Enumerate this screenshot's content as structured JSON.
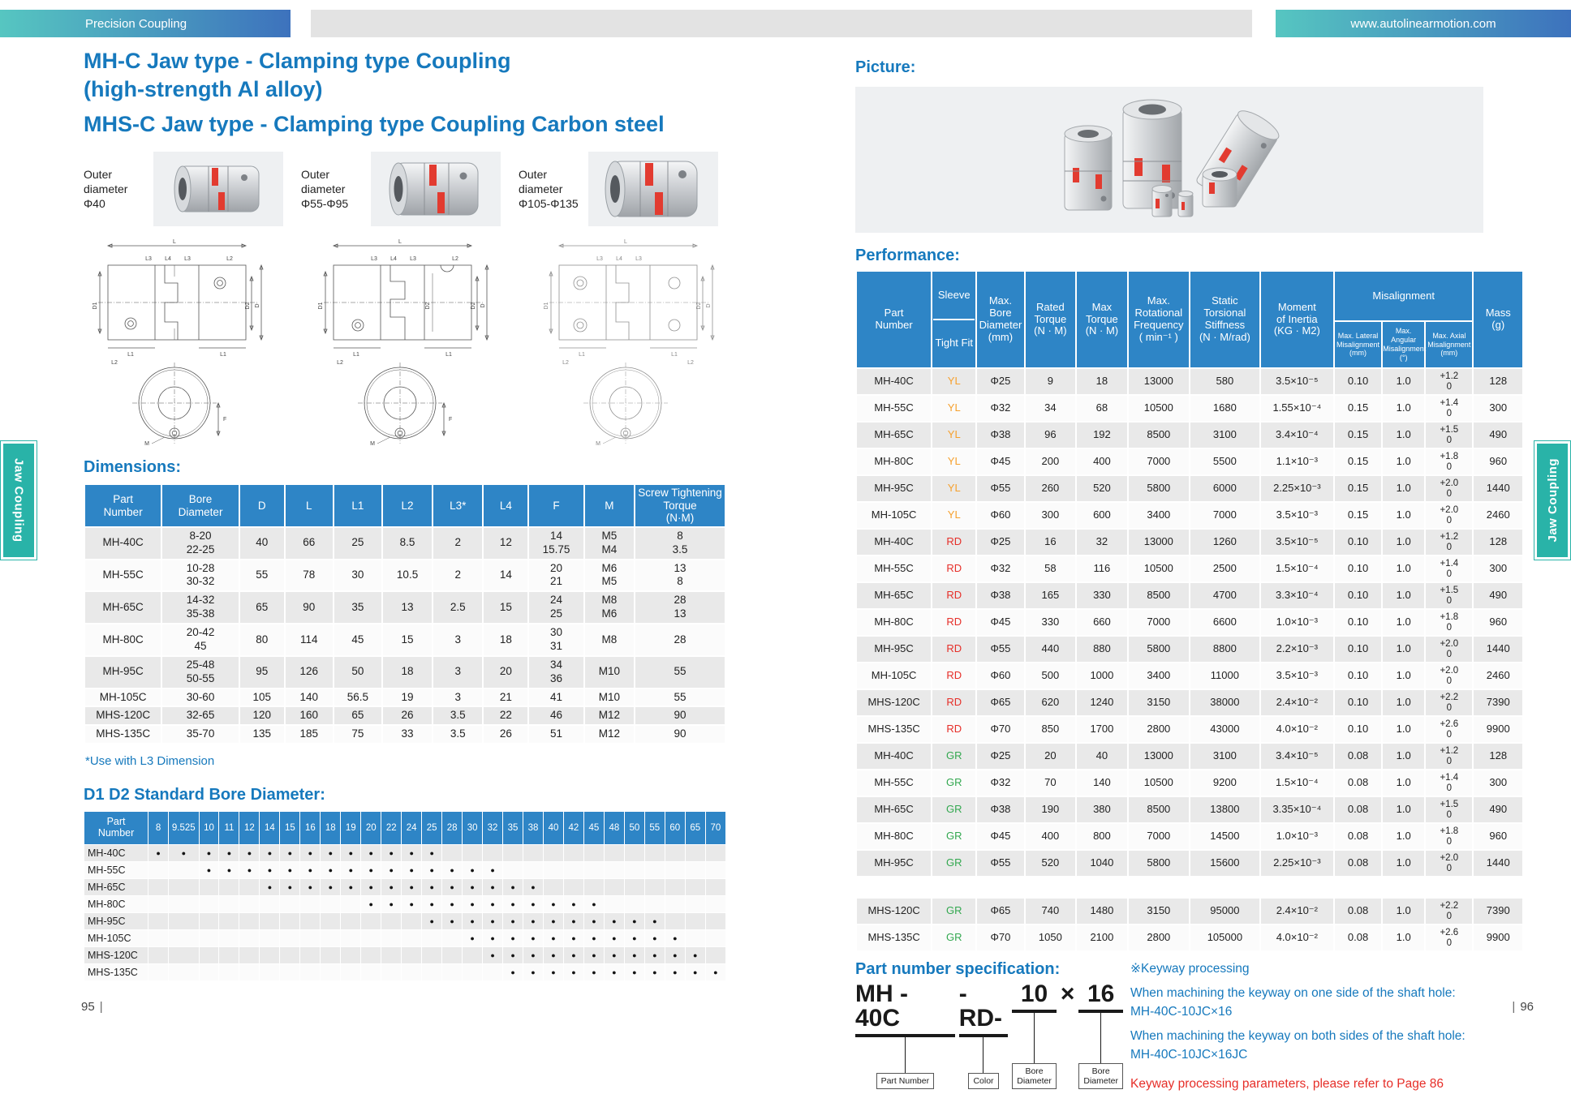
{
  "header": {
    "product_tag": "Precision Coupling",
    "website": "www.autolinearmotion.com"
  },
  "side_tab": {
    "label": "Jaw Coupling"
  },
  "drawings": {
    "L": "L",
    "L1": "L1",
    "L2": "L2",
    "L3": "L3",
    "L4": "L4",
    "D": "D",
    "D1": "D1",
    "D2": "D2",
    "M": "M",
    "F": "F"
  },
  "page_left": {
    "page_number": "95",
    "title_line1": "MH-C Jaw type - Clamping type Coupling",
    "title_line2": "(high-strength Al alloy)",
    "title_line3": "MHS-C Jaw type - Clamping type Coupling Carbon steel",
    "products": [
      {
        "caption": "Outer diameter",
        "value": "Φ40"
      },
      {
        "caption": "Outer diameter",
        "value": "Φ55-Φ95"
      },
      {
        "caption": "Outer diameter",
        "value": "Φ105-Φ135"
      }
    ],
    "dimensions": {
      "heading": "Dimensions:",
      "note": "*Use with L3 Dimension",
      "columns": [
        "Part\nNumber",
        "Bore\nDiameter",
        "D",
        "L",
        "L1",
        "L2",
        "L3*",
        "L4",
        "F",
        "M",
        "Screw Tightening\nTorque\n(N·M)"
      ],
      "rows": [
        [
          "MH-40C",
          "8-20\n22-25",
          "40",
          "66",
          "25",
          "8.5",
          "2",
          "12",
          "14\n15.75",
          "M5\nM4",
          "8\n3.5"
        ],
        [
          "MH-55C",
          "10-28\n30-32",
          "55",
          "78",
          "30",
          "10.5",
          "2",
          "14",
          "20\n21",
          "M6\nM5",
          "13\n8"
        ],
        [
          "MH-65C",
          "14-32\n35-38",
          "65",
          "90",
          "35",
          "13",
          "2.5",
          "15",
          "24\n25",
          "M8\nM6",
          "28\n13"
        ],
        [
          "MH-80C",
          "20-42\n45",
          "80",
          "114",
          "45",
          "15",
          "3",
          "18",
          "30\n31",
          "M8",
          "28"
        ],
        [
          "MH-95C",
          "25-48\n50-55",
          "95",
          "126",
          "50",
          "18",
          "3",
          "20",
          "34\n36",
          "M10",
          "55"
        ],
        [
          "MH-105C",
          "30-60",
          "105",
          "140",
          "56.5",
          "19",
          "3",
          "21",
          "41",
          "M10",
          "55"
        ],
        [
          "MHS-120C",
          "32-65",
          "120",
          "160",
          "65",
          "26",
          "3.5",
          "22",
          "46",
          "M12",
          "90"
        ],
        [
          "MHS-135C",
          "35-70",
          "135",
          "185",
          "75",
          "33",
          "3.5",
          "26",
          "51",
          "M12",
          "90"
        ]
      ]
    },
    "bore": {
      "heading": "D1 D2 Standard Bore Diameter:",
      "part_col": "Part\nNumber",
      "sizes": [
        "8",
        "9.525",
        "10",
        "11",
        "12",
        "14",
        "15",
        "16",
        "18",
        "19",
        "20",
        "22",
        "24",
        "25",
        "28",
        "30",
        "32",
        "35",
        "38",
        "40",
        "42",
        "45",
        "48",
        "50",
        "55",
        "60",
        "65",
        "70"
      ],
      "rows": [
        {
          "part": "MH-40C",
          "dots": [
            "8",
            "9.525",
            "10",
            "11",
            "12",
            "14",
            "15",
            "16",
            "18",
            "19",
            "20",
            "22",
            "24",
            "25"
          ]
        },
        {
          "part": "MH-55C",
          "dots": [
            "10",
            "11",
            "12",
            "14",
            "15",
            "16",
            "18",
            "19",
            "20",
            "22",
            "24",
            "25",
            "28",
            "30",
            "32"
          ]
        },
        {
          "part": "MH-65C",
          "dots": [
            "14",
            "15",
            "16",
            "18",
            "19",
            "20",
            "22",
            "24",
            "25",
            "28",
            "30",
            "32",
            "35",
            "38"
          ]
        },
        {
          "part": "MH-80C",
          "dots": [
            "20",
            "22",
            "24",
            "25",
            "28",
            "30",
            "32",
            "35",
            "38",
            "40",
            "42",
            "45"
          ]
        },
        {
          "part": "MH-95C",
          "dots": [
            "25",
            "28",
            "30",
            "32",
            "35",
            "38",
            "40",
            "42",
            "45",
            "48",
            "50",
            "55"
          ]
        },
        {
          "part": "MH-105C",
          "dots": [
            "30",
            "32",
            "35",
            "38",
            "40",
            "42",
            "45",
            "48",
            "50",
            "55",
            "60"
          ]
        },
        {
          "part": "MHS-120C",
          "dots": [
            "32",
            "35",
            "38",
            "40",
            "42",
            "45",
            "48",
            "50",
            "55",
            "60",
            "65"
          ]
        },
        {
          "part": "MHS-135C",
          "dots": [
            "35",
            "38",
            "40",
            "42",
            "45",
            "48",
            "50",
            "55",
            "60",
            "65",
            "70"
          ]
        }
      ]
    }
  },
  "page_right": {
    "page_number": "96",
    "picture_heading": "Picture:",
    "performance_heading": "Performance:",
    "performance": {
      "header": {
        "part": "Part\nNumber",
        "sleeve_top": "Sleeve",
        "sleeve_bottom": "Tight Fit",
        "bore": "Max.\nBore\nDiameter\n(mm)",
        "rated": "Rated\nTorque\n(N · M)",
        "max": "Max\nTorque\n(N · M)",
        "freq": "Max.\nRotational\nFrequency\n( min⁻¹ )",
        "stiffness": "Static\nTorsional\nStiffness\n(N · M/rad)",
        "inertia": "Moment\nof Inertia\n(KG · M2)",
        "misalignment": "Misalignment",
        "lateral": "Max. Lateral\nMisalignment\n(mm)",
        "angular": "Max. Angular\nMisalignment\n(°)",
        "axial": "Max. Axial\nMisalignment\n(mm)",
        "mass": "Mass\n(g)"
      },
      "rows": [
        [
          "MH-40C",
          "YL",
          "Φ25",
          "9",
          "18",
          "13000",
          "580",
          "3.5×10⁻⁵",
          "0.10",
          "1.0",
          "+1.2\n0",
          "128"
        ],
        [
          "MH-55C",
          "YL",
          "Φ32",
          "34",
          "68",
          "10500",
          "1680",
          "1.55×10⁻⁴",
          "0.15",
          "1.0",
          "+1.4\n0",
          "300"
        ],
        [
          "MH-65C",
          "YL",
          "Φ38",
          "96",
          "192",
          "8500",
          "3100",
          "3.4×10⁻⁴",
          "0.15",
          "1.0",
          "+1.5\n0",
          "490"
        ],
        [
          "MH-80C",
          "YL",
          "Φ45",
          "200",
          "400",
          "7000",
          "5500",
          "1.1×10⁻³",
          "0.15",
          "1.0",
          "+1.8\n0",
          "960"
        ],
        [
          "MH-95C",
          "YL",
          "Φ55",
          "260",
          "520",
          "5800",
          "6000",
          "2.25×10⁻³",
          "0.15",
          "1.0",
          "+2.0\n0",
          "1440"
        ],
        [
          "MH-105C",
          "YL",
          "Φ60",
          "300",
          "600",
          "3400",
          "7000",
          "3.5×10⁻³",
          "0.15",
          "1.0",
          "+2.0\n0",
          "2460"
        ],
        [
          "MH-40C",
          "RD",
          "Φ25",
          "16",
          "32",
          "13000",
          "1260",
          "3.5×10⁻⁵",
          "0.10",
          "1.0",
          "+1.2\n0",
          "128"
        ],
        [
          "MH-55C",
          "RD",
          "Φ32",
          "58",
          "116",
          "10500",
          "2500",
          "1.5×10⁻⁴",
          "0.10",
          "1.0",
          "+1.4\n0",
          "300"
        ],
        [
          "MH-65C",
          "RD",
          "Φ38",
          "165",
          "330",
          "8500",
          "4700",
          "3.3×10⁻⁴",
          "0.10",
          "1.0",
          "+1.5\n0",
          "490"
        ],
        [
          "MH-80C",
          "RD",
          "Φ45",
          "330",
          "660",
          "7000",
          "6600",
          "1.0×10⁻³",
          "0.10",
          "1.0",
          "+1.8\n0",
          "960"
        ],
        [
          "MH-95C",
          "RD",
          "Φ55",
          "440",
          "880",
          "5800",
          "8800",
          "2.2×10⁻³",
          "0.10",
          "1.0",
          "+2.0\n0",
          "1440"
        ],
        [
          "MH-105C",
          "RD",
          "Φ60",
          "500",
          "1000",
          "3400",
          "11000",
          "3.5×10⁻³",
          "0.10",
          "1.0",
          "+2.0\n0",
          "2460"
        ],
        [
          "MHS-120C",
          "RD",
          "Φ65",
          "620",
          "1240",
          "3150",
          "38000",
          "2.4×10⁻²",
          "0.10",
          "1.0",
          "+2.2\n0",
          "7390"
        ],
        [
          "MHS-135C",
          "RD",
          "Φ70",
          "850",
          "1700",
          "2800",
          "43000",
          "4.0×10⁻²",
          "0.10",
          "1.0",
          "+2.6\n0",
          "9900"
        ],
        [
          "MH-40C",
          "GR",
          "Φ25",
          "20",
          "40",
          "13000",
          "3100",
          "3.4×10⁻⁵",
          "0.08",
          "1.0",
          "+1.2\n0",
          "128"
        ],
        [
          "MH-55C",
          "GR",
          "Φ32",
          "70",
          "140",
          "10500",
          "9200",
          "1.5×10⁻⁴",
          "0.08",
          "1.0",
          "+1.4\n0",
          "300"
        ],
        [
          "MH-65C",
          "GR",
          "Φ38",
          "190",
          "380",
          "8500",
          "13800",
          "3.35×10⁻⁴",
          "0.08",
          "1.0",
          "+1.5\n0",
          "490"
        ],
        [
          "MH-80C",
          "GR",
          "Φ45",
          "400",
          "800",
          "7000",
          "14500",
          "1.0×10⁻³",
          "0.08",
          "1.0",
          "+1.8\n0",
          "960"
        ],
        [
          "MH-95C",
          "GR",
          "Φ55",
          "520",
          "1040",
          "5800",
          "15600",
          "2.25×10⁻³",
          "0.08",
          "1.0",
          "+2.0\n0",
          "1440"
        ]
      ],
      "rows_extra": [
        [
          "MHS-120C",
          "GR",
          "Φ65",
          "740",
          "1480",
          "3150",
          "95000",
          "2.4×10⁻²",
          "0.08",
          "1.0",
          "+2.2\n0",
          "7390"
        ],
        [
          "MHS-135C",
          "GR",
          "Φ70",
          "1050",
          "2100",
          "2800",
          "105000",
          "4.0×10⁻²",
          "0.08",
          "1.0",
          "+2.6\n0",
          "9900"
        ]
      ]
    },
    "part_spec": {
      "heading": "Part number specification:",
      "segments": [
        {
          "text": "MH - 40C",
          "underline": true,
          "label": "Part Number"
        },
        {
          "text": "-RD-",
          "underline": true,
          "label": "Color"
        },
        {
          "text": "10",
          "underline": true,
          "label": "Bore\nDiameter"
        },
        {
          "text": "×",
          "underline": false,
          "label": ""
        },
        {
          "text": "16",
          "underline": true,
          "label": "Bore\nDiameter"
        }
      ]
    },
    "keyway": {
      "title": "※Keyway processing",
      "line1": "When machining the keyway on one side of the shaft hole:",
      "code1": "MH-40C-10JC×16",
      "line2": "When machining the keyway on both sides of the shaft hole:",
      "code2": "MH-40C-10JC×16JC",
      "note": "Keyway processing parameters, please refer to Page 86"
    }
  },
  "colors": {
    "accent_blue": "#1679bd",
    "table_header_blue": "#2e85c6",
    "tab_teal": "#29b3a8",
    "sleeve_yl": "#f6a02d",
    "sleeve_rd": "#e62e28",
    "sleeve_gr": "#33a850",
    "row_gray": "#e9e9e9"
  }
}
